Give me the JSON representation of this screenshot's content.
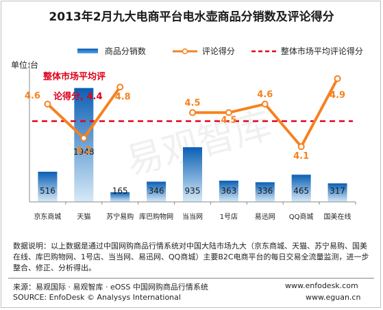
{
  "title": "2013年2月九大电商平台电水壶商品分销数及评论得分",
  "unit_label": "单位:台",
  "legend": {
    "bar": "商品分销数",
    "line": "评论得分",
    "avg": "整体市场平均评论得分"
  },
  "avg_annotation_line1": "整体市场平均评",
  "avg_annotation_line2": "论得分, 4.4",
  "watermark": "易观智库",
  "note": "数据说明：以上数据是通过中国网购商品行情系统对中国大陆市场九大（京东商城、天猫、苏宁易购、国美在线、库巴购物网、1号店、当当网、易迅网、QQ商城）主要B2C电商平台的每日交易全流量监测，进一步整合、修正、分析得出。",
  "footer": {
    "source_cn": "来源：易观国际 · 易观智库 · eOSS 中国网购商品行情系统",
    "site1": "www.enfodesk.com",
    "source_en": "SOURCE: EnfoDesk © Analysys International",
    "site2": "www.eguan.cn"
  },
  "colors": {
    "bar_top": "#0a5fb4",
    "bar_bottom": "#d6eaf8",
    "line": "#f5821f",
    "avg": "#e0001a",
    "annotation": "#e0001a"
  },
  "chart_data": {
    "type": "bar",
    "categories": [
      "京东商城",
      "天猫",
      "苏宁易购",
      "库巴购物网",
      "当当网",
      "1号店",
      "易迅网",
      "QQ商城",
      "国美在线"
    ],
    "series": [
      {
        "name": "商品分销数",
        "type": "bar",
        "values": [
          516,
          1948,
          165,
          346,
          935,
          363,
          336,
          465,
          317
        ]
      },
      {
        "name": "评论得分",
        "type": "line",
        "values": [
          4.6,
          4.2,
          4.8,
          null,
          4.5,
          4.5,
          4.6,
          4.1,
          4.9
        ]
      }
    ],
    "reference_line": {
      "name": "整体市场平均评论得分",
      "value": 4.4
    },
    "bar_ylim": [
      0,
      2400
    ],
    "line_ylim": [
      3.45,
      5.1
    ],
    "grid": false,
    "legend_position": "top"
  }
}
